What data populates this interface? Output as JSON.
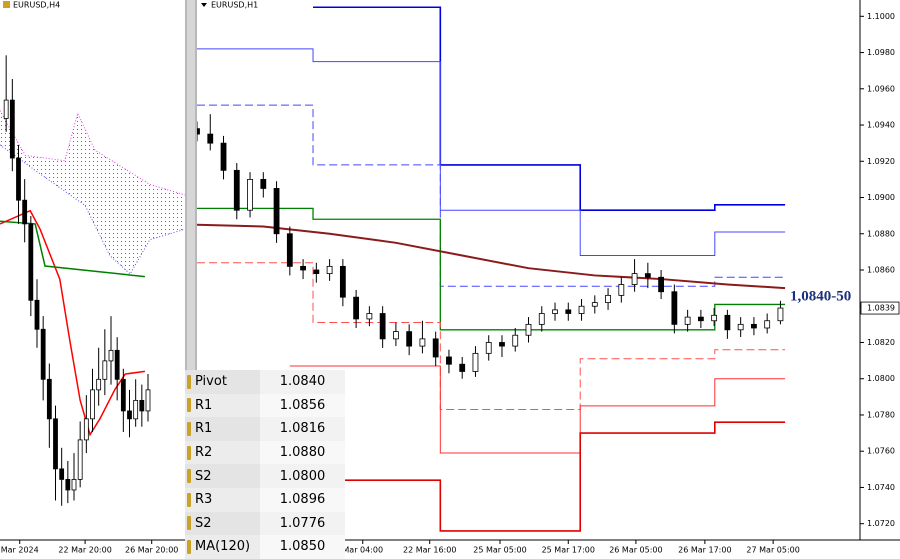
{
  "chart_data": [
    {
      "type": "candlestick",
      "title": "EURUSD,H4",
      "x": [
        0,
        1,
        2,
        3,
        4,
        5,
        6,
        7,
        8,
        9,
        10,
        11,
        12,
        13,
        14,
        15,
        16,
        17,
        18,
        19,
        20,
        21,
        22,
        23
      ],
      "open": [
        1.0945,
        1.0952,
        1.093,
        1.0914,
        1.0905,
        1.0876,
        1.0865,
        1.0846,
        1.0831,
        1.0812,
        1.0808,
        1.0804,
        1.0808,
        1.0823,
        1.0831,
        1.0842,
        1.0846,
        1.0853,
        1.0857,
        1.0846,
        1.0834,
        1.0831,
        1.0838,
        1.0834
      ],
      "high": [
        1.0969,
        1.096,
        1.0935,
        1.0922,
        1.0908,
        1.0884,
        1.087,
        1.0852,
        1.0836,
        1.082,
        1.0815,
        1.0818,
        1.083,
        1.084,
        1.085,
        1.0858,
        1.0865,
        1.087,
        1.0862,
        1.085,
        1.0842,
        1.0846,
        1.0844,
        1.0848
      ],
      "low": [
        1.094,
        1.0925,
        1.0905,
        1.0898,
        1.087,
        1.0858,
        1.0838,
        1.082,
        1.08,
        1.0798,
        1.0799,
        1.08,
        1.0805,
        1.0818,
        1.0826,
        1.0836,
        1.084,
        1.0844,
        1.0838,
        1.0826,
        1.0824,
        1.0828,
        1.0828,
        1.083
      ],
      "close": [
        1.0952,
        1.093,
        1.0914,
        1.0905,
        1.0876,
        1.0865,
        1.0846,
        1.0831,
        1.0812,
        1.0808,
        1.0804,
        1.0808,
        1.0823,
        1.0831,
        1.0842,
        1.0846,
        1.0853,
        1.0857,
        1.0846,
        1.0834,
        1.0831,
        1.0838,
        1.0834,
        1.0842
      ],
      "xlim": [
        -1,
        29
      ],
      "ylim": [
        1.0785,
        1.099
      ],
      "xticks": [
        {
          "value": 2.2,
          "label": "Mar 2024"
        },
        {
          "value": 12.8,
          "label": "22 Mar 20:00"
        },
        {
          "value": 23.6,
          "label": "26 Mar 20:00"
        }
      ],
      "cloud": {
        "color": "#6a5acd",
        "color_a": "#e040e0",
        "color_b": "#5050ff",
        "x_a": [
          -1,
          3.1,
          9.5,
          11.6,
          14.4,
          23.3,
          29
        ],
        "span_a": [
          1.0948,
          1.0931,
          1.0929,
          1.0947,
          1.0933,
          1.092,
          1.0916
        ],
        "x_b": [
          -1,
          5.5,
          12.8,
          16.8,
          20.1,
          23.3,
          29
        ],
        "span_b": [
          1.0935,
          1.0924,
          1.0912,
          1.0893,
          1.0886,
          1.0899,
          1.0903
        ]
      },
      "lines": [
        {
          "color": "#ff0000",
          "width": 1.5,
          "dash": false,
          "x": [
            -1,
            3.9,
            5.5,
            8.7,
            10.3,
            12.0,
            13.6,
            15.2,
            17.6,
            19.3,
            22.5
          ],
          "values": [
            1.0905,
            1.091,
            1.0903,
            1.0884,
            1.0861,
            1.0838,
            1.0825,
            1.0831,
            1.0842,
            1.0848,
            1.0849
          ]
        },
        {
          "color": "#008000",
          "width": 1.5,
          "dash": false,
          "x": [
            -1,
            4.7,
            6.3,
            22.5
          ],
          "values": [
            1.0906,
            1.0905,
            1.0889,
            1.0885
          ]
        }
      ]
    },
    {
      "type": "candlestick",
      "title": "EURUSD,H1",
      "x": [
        0,
        2,
        4,
        6,
        8,
        10,
        12,
        14,
        16,
        18,
        20,
        22,
        24,
        26,
        28,
        30,
        32,
        34,
        36,
        38,
        40,
        42,
        44,
        46,
        48,
        50,
        52,
        54,
        56,
        58,
        60,
        62,
        64,
        66,
        68,
        70,
        72,
        74,
        76,
        78,
        80,
        82,
        84,
        86,
        88
      ],
      "open": [
        1.0938,
        1.0935,
        1.093,
        1.0915,
        1.0893,
        1.091,
        1.0905,
        1.088,
        1.0862,
        1.086,
        1.0858,
        1.0862,
        1.0845,
        1.0833,
        1.0836,
        1.0822,
        1.0826,
        1.0818,
        1.0822,
        1.0812,
        1.0808,
        1.0804,
        1.0814,
        1.082,
        1.0818,
        1.0824,
        1.083,
        1.0836,
        1.0838,
        1.0836,
        1.084,
        1.0842,
        1.0846,
        1.0852,
        1.0858,
        1.0856,
        1.0848,
        1.083,
        1.0834,
        1.0832,
        1.0835,
        1.0827,
        1.083,
        1.0828,
        1.0832
      ],
      "high": [
        1.0942,
        1.0946,
        1.0934,
        1.0919,
        1.0914,
        1.0914,
        1.0909,
        1.0884,
        1.0866,
        1.0864,
        1.0866,
        1.0866,
        1.0849,
        1.084,
        1.084,
        1.0831,
        1.083,
        1.0832,
        1.0826,
        1.0816,
        1.0812,
        1.0818,
        1.0824,
        1.0824,
        1.0828,
        1.0834,
        1.084,
        1.0842,
        1.0842,
        1.0844,
        1.0846,
        1.085,
        1.0856,
        1.0866,
        1.0864,
        1.086,
        1.0852,
        1.0838,
        1.0838,
        1.0839,
        1.0838,
        1.0834,
        1.0834,
        1.0836,
        1.0843
      ],
      "low": [
        1.0931,
        1.0926,
        1.091,
        1.0888,
        1.0889,
        1.09,
        1.0875,
        1.0857,
        1.0855,
        1.0853,
        1.0854,
        1.084,
        1.0828,
        1.0829,
        1.0817,
        1.0818,
        1.0813,
        1.0814,
        1.0807,
        1.0803,
        1.08,
        1.0801,
        1.081,
        1.0812,
        1.0815,
        1.082,
        1.0826,
        1.0832,
        1.0832,
        1.0832,
        1.0836,
        1.0838,
        1.0842,
        1.0848,
        1.085,
        1.0844,
        1.0825,
        1.0826,
        1.0828,
        1.0829,
        1.0822,
        1.0823,
        1.0824,
        1.0825,
        1.083
      ],
      "close": [
        1.0935,
        1.093,
        1.0915,
        1.0893,
        1.091,
        1.0905,
        1.088,
        1.0862,
        1.086,
        1.0858,
        1.0862,
        1.0845,
        1.0833,
        1.0836,
        1.0822,
        1.0826,
        1.0818,
        1.0822,
        1.0812,
        1.0808,
        1.0804,
        1.0814,
        1.082,
        1.0818,
        1.0824,
        1.083,
        1.0836,
        1.0838,
        1.0836,
        1.084,
        1.0842,
        1.0846,
        1.0852,
        1.0858,
        1.0856,
        1.0848,
        1.083,
        1.0834,
        1.0832,
        1.0835,
        1.0827,
        1.083,
        1.0828,
        1.0832,
        1.0839
      ],
      "xlim": [
        0,
        100
      ],
      "ylim": [
        1.0711,
        1.1009
      ],
      "yticks": [
        {
          "value": 1.1,
          "label": "1.1000"
        },
        {
          "value": 1.098,
          "label": "1.0980"
        },
        {
          "value": 1.096,
          "label": "1.0960"
        },
        {
          "value": 1.094,
          "label": "1.0940"
        },
        {
          "value": 1.092,
          "label": "1.0920"
        },
        {
          "value": 1.09,
          "label": "1.0900"
        },
        {
          "value": 1.088,
          "label": "1.0880"
        },
        {
          "value": 1.086,
          "label": "1.0860"
        },
        {
          "value": 1.084,
          "label": "1.0840"
        },
        {
          "value": 1.082,
          "label": "1.0820"
        },
        {
          "value": 1.08,
          "label": "1.0800"
        },
        {
          "value": 1.078,
          "label": "1.0780"
        },
        {
          "value": 1.076,
          "label": "1.0760"
        },
        {
          "value": 1.074,
          "label": "1.0740"
        },
        {
          "value": 1.072,
          "label": "1.0720"
        }
      ],
      "xticks": [
        {
          "value": 25.0,
          "label": "Mar 04:00"
        },
        {
          "value": 35.1,
          "label": "22 Mar 16:00"
        },
        {
          "value": 45.7,
          "label": "25 Mar 05:00"
        },
        {
          "value": 56.0,
          "label": "25 Mar 17:00"
        },
        {
          "value": 66.2,
          "label": "26 Mar 05:00"
        },
        {
          "value": 76.6,
          "label": "26 Mar 17:00"
        },
        {
          "value": 86.9,
          "label": "27 Mar 05:00"
        }
      ],
      "last_price": 1.0839,
      "annotation": "1,0840-50",
      "lines": [
        {
          "color": "#0000dd",
          "width": 1.6,
          "dash": false,
          "x": [
            17.5,
            36.7,
            36.7,
            57.8,
            57.8,
            78.1,
            78.1,
            88.7
          ],
          "values": [
            1.1005,
            1.1005,
            1.0918,
            1.0918,
            1.0893,
            1.0893,
            1.0896,
            1.0896
          ]
        },
        {
          "color": "#4646ff",
          "width": 1,
          "dash": false,
          "x": [
            0,
            17.5,
            17.5,
            36.7,
            36.7,
            57.8,
            57.8,
            78.1,
            78.1,
            88.7
          ],
          "values": [
            1.0982,
            1.0982,
            1.0975,
            1.0975,
            1.0893,
            1.0893,
            1.0868,
            1.0868,
            1.0881,
            1.0881
          ]
        },
        {
          "color": "#4646ff",
          "width": 1,
          "dash": true,
          "x": [
            0,
            17.5,
            17.5,
            36.7,
            36.7,
            78.1,
            78.1,
            88.7
          ],
          "values": [
            1.0951,
            1.0951,
            1.0918,
            1.0918,
            1.0851,
            1.0851,
            1.0856,
            1.0856
          ]
        },
        {
          "color": "#008000",
          "width": 1.3,
          "dash": false,
          "x": [
            0,
            17.5,
            17.5,
            36.7,
            36.7,
            78.1,
            78.1,
            88.7
          ],
          "values": [
            1.0894,
            1.0894,
            1.0888,
            1.0888,
            1.0827,
            1.0827,
            1.0841,
            1.0841
          ]
        },
        {
          "color": "#8b1a1a",
          "width": 2,
          "dash": false,
          "x": [
            0,
            10,
            20,
            30,
            40,
            50,
            60,
            70,
            80,
            88.7
          ],
          "values": [
            1.0885,
            1.0884,
            1.088,
            1.0875,
            1.0868,
            1.0861,
            1.0857,
            1.0855,
            1.0852,
            1.085
          ]
        },
        {
          "color": "#ff5050",
          "width": 1,
          "dash": true,
          "x": [
            0,
            17.5,
            17.5,
            36.7,
            36.7,
            57.8,
            57.8,
            78.1,
            78.1,
            88.7
          ],
          "values": [
            1.0864,
            1.0864,
            1.0831,
            1.0831,
            1.0783,
            1.0783,
            1.0811,
            1.0811,
            1.0816,
            1.0816
          ]
        },
        {
          "color": "#ff3030",
          "width": 1,
          "dash": false,
          "x": [
            14,
            36.7,
            36.7,
            57.8,
            57.8,
            78.1,
            78.1,
            88.7
          ],
          "values": [
            1.0807,
            1.0807,
            1.0759,
            1.0759,
            1.0785,
            1.0785,
            1.08,
            1.08
          ]
        },
        {
          "color": "#e00000",
          "width": 1.6,
          "dash": false,
          "x": [
            14,
            36.7,
            36.7,
            57.8,
            57.8,
            78.1,
            78.1,
            88.7
          ],
          "values": [
            1.0744,
            1.0744,
            1.0716,
            1.0716,
            1.077,
            1.077,
            1.0776,
            1.0776
          ]
        }
      ]
    }
  ],
  "pivot_table": {
    "rows": [
      [
        "Pivot",
        "1.0840"
      ],
      [
        "R1",
        "1.0856"
      ],
      [
        "R1",
        "1.0816"
      ],
      [
        "R2",
        "1.0880"
      ],
      [
        "S2",
        "1.0800"
      ],
      [
        "R3",
        "1.0896"
      ],
      [
        "S2",
        "1.0776"
      ],
      [
        "MA(120)",
        "1.0850"
      ]
    ]
  }
}
